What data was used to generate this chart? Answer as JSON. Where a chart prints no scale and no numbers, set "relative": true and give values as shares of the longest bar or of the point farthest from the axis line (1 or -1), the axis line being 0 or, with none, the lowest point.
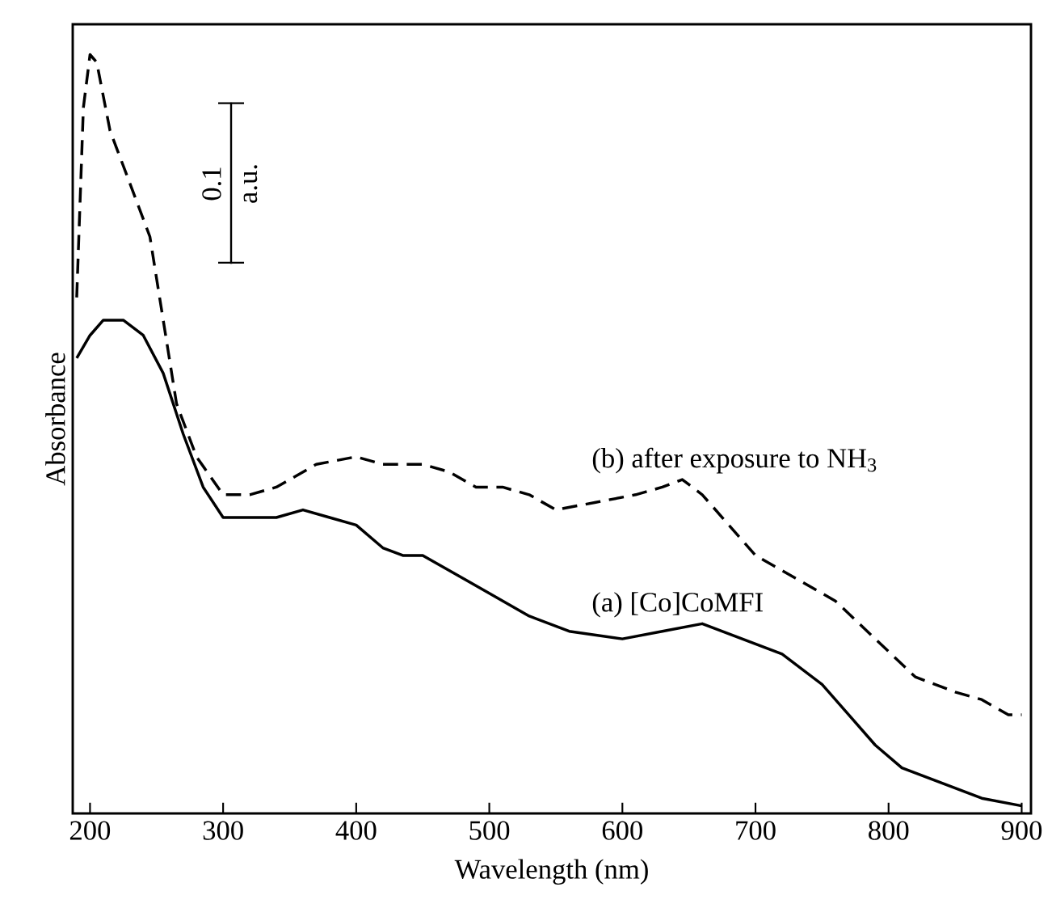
{
  "chart_data": {
    "type": "line",
    "xlabel": "Wavelength (nm)",
    "ylabel": "Absorbance",
    "relative": true,
    "xlim": [
      187,
      907
    ],
    "xticks": [
      200,
      300,
      400,
      500,
      600,
      700,
      800,
      900
    ],
    "tick_labels": "x",
    "grid": false,
    "legend": false,
    "marker": "none",
    "annotations": [
      "0.1",
      "a.u."
    ],
    "series": [
      {
        "name": "(a) [Co]CoMFI",
        "color": "#000000",
        "line_style": "solid",
        "x": [
          190,
          200,
          210,
          225,
          240,
          255,
          270,
          285,
          300,
          320,
          340,
          360,
          380,
          400,
          420,
          435,
          450,
          480,
          500,
          530,
          560,
          600,
          630,
          660,
          690,
          720,
          750,
          770,
          790,
          810,
          840,
          870,
          900
        ],
        "values": [
          0.6,
          0.63,
          0.65,
          0.65,
          0.63,
          0.58,
          0.5,
          0.43,
          0.39,
          0.39,
          0.39,
          0.4,
          0.39,
          0.38,
          0.35,
          0.34,
          0.34,
          0.31,
          0.29,
          0.26,
          0.24,
          0.23,
          0.24,
          0.25,
          0.23,
          0.21,
          0.17,
          0.13,
          0.09,
          0.06,
          0.04,
          0.02,
          0.01
        ]
      },
      {
        "name": "(b) after exposure to NH$_{3}$",
        "color": "#000000",
        "line_style": "dashed",
        "x": [
          190,
          195,
          200,
          205,
          215,
          230,
          245,
          255,
          265,
          280,
          300,
          320,
          340,
          370,
          400,
          420,
          430,
          450,
          470,
          490,
          510,
          530,
          550,
          580,
          610,
          630,
          645,
          660,
          680,
          700,
          730,
          760,
          790,
          820,
          850,
          870,
          890,
          900
        ],
        "values": [
          0.68,
          0.93,
          1.0,
          0.99,
          0.9,
          0.83,
          0.76,
          0.65,
          0.54,
          0.47,
          0.42,
          0.42,
          0.43,
          0.46,
          0.47,
          0.46,
          0.46,
          0.46,
          0.45,
          0.43,
          0.43,
          0.42,
          0.4,
          0.41,
          0.42,
          0.43,
          0.44,
          0.42,
          0.38,
          0.34,
          0.31,
          0.28,
          0.23,
          0.18,
          0.16,
          0.15,
          0.13,
          0.13
        ]
      }
    ]
  }
}
